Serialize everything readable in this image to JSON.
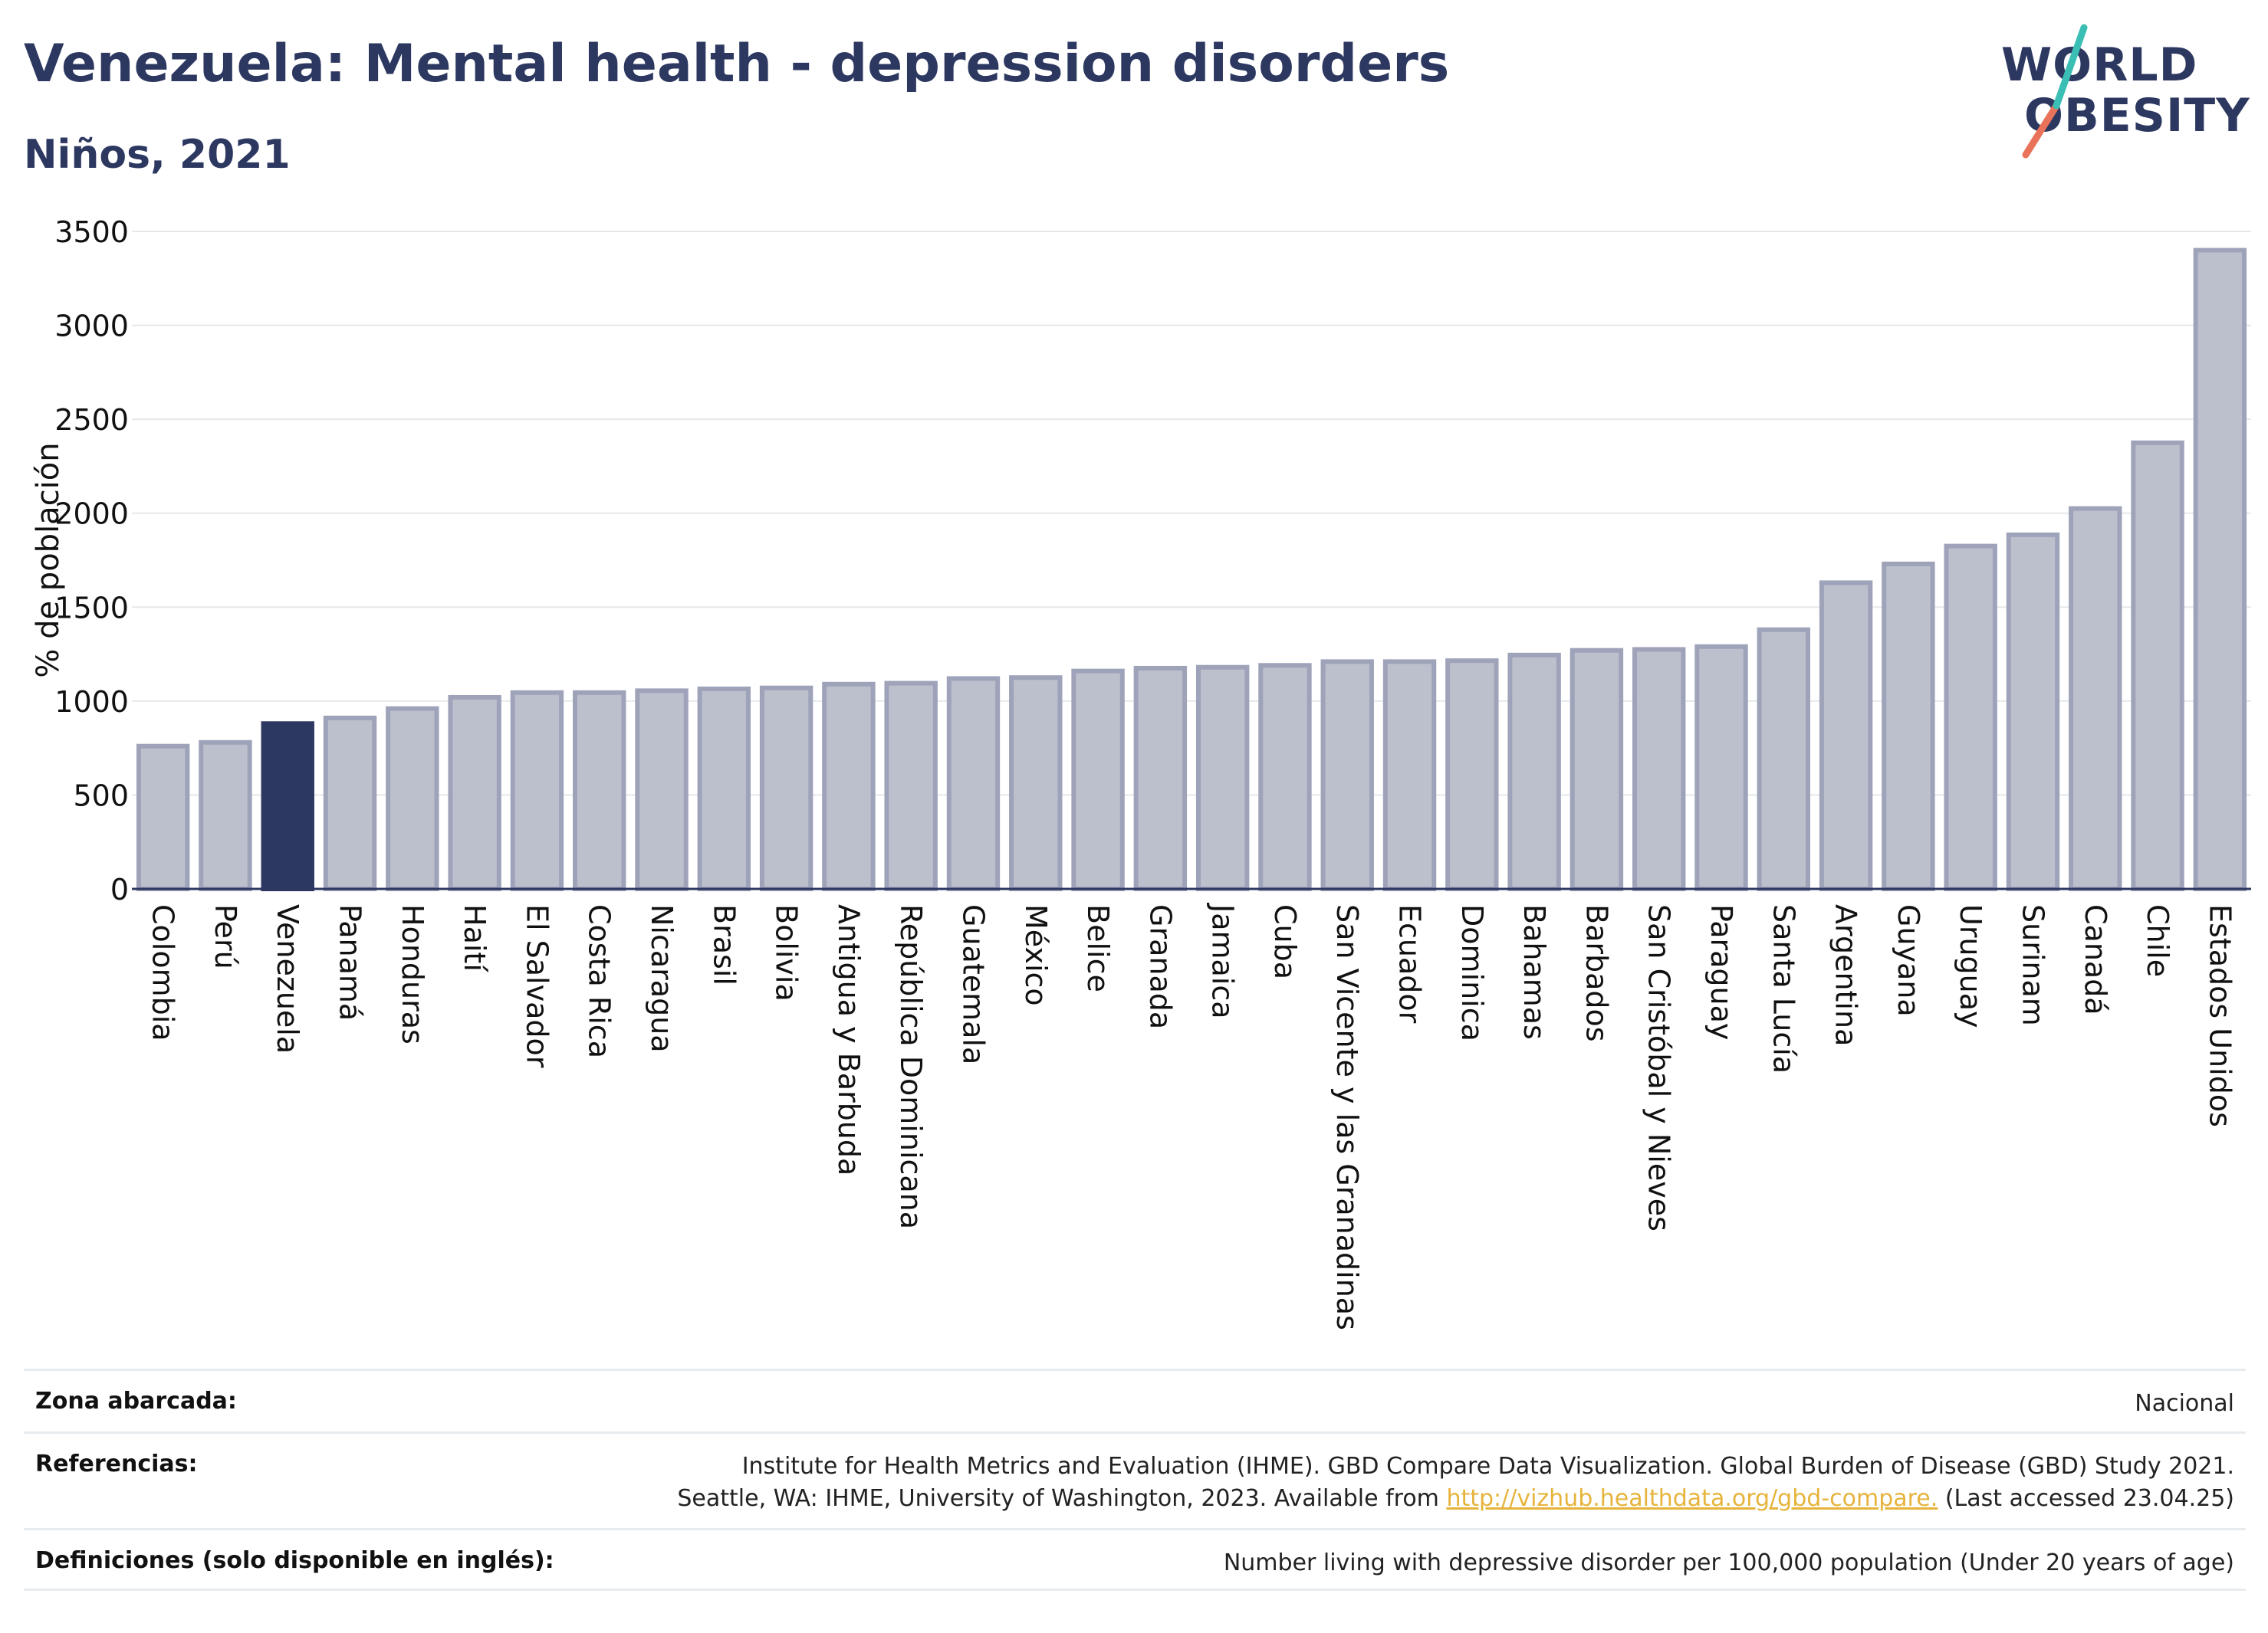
{
  "header": {
    "title": "Venezuela: Mental health - depression disorders",
    "subtitle": "Niños, 2021"
  },
  "logo": {
    "line1": "WORLD",
    "line2": "OBESITY",
    "accent_teal": "#3bbfb5",
    "accent_coral": "#e8735a"
  },
  "colors": {
    "highlight_bar": "#2d3861",
    "other_bar_fill": "#bcc0cd",
    "other_bar_stroke": "#9ea3ba",
    "text": "#2d3861"
  },
  "chart_data": {
    "type": "bar",
    "ylabel": "% de población",
    "ylim": [
      0,
      3500
    ],
    "yticks": [
      0,
      500,
      1000,
      1500,
      2000,
      2500,
      3000,
      3500
    ],
    "grid": true,
    "highlight": "Venezuela",
    "categories": [
      "Colombia",
      "Perú",
      "Venezuela",
      "Panamá",
      "Honduras",
      "Haití",
      "El Salvador",
      "Costa Rica",
      "Nicaragua",
      "Brasil",
      "Bolivia",
      "Antigua y Barbuda",
      "República Dominicana",
      "Guatemala",
      "México",
      "Belice",
      "Granada",
      "Jamaica",
      "Cuba",
      "San Vicente y las Granadinas",
      "Ecuador",
      "Dominica",
      "Bahamas",
      "Barbados",
      "San Cristóbal y Nieves",
      "Paraguay",
      "Santa Lucía",
      "Argentina",
      "Guyana",
      "Uruguay",
      "Surinam",
      "Canadá",
      "Chile",
      "Estados Unidos"
    ],
    "values": [
      760,
      780,
      880,
      910,
      960,
      1020,
      1045,
      1045,
      1055,
      1065,
      1070,
      1090,
      1095,
      1120,
      1125,
      1160,
      1175,
      1180,
      1190,
      1210,
      1210,
      1215,
      1245,
      1270,
      1275,
      1290,
      1380,
      1630,
      1730,
      1825,
      1885,
      2025,
      2375,
      3400
    ]
  },
  "footer": {
    "rows": [
      {
        "label": "Zona abarcada:",
        "value": "Nacional"
      },
      {
        "label": "Referencias:",
        "value_line1": "Institute for Health Metrics and Evaluation (IHME). GBD Compare Data Visualization. Global Burden of Disease (GBD) Study 2021.",
        "value_line2_pre": "Seattle, WA: IHME, University of Washington, 2023. Available from ",
        "link": "http://vizhub.healthdata.org/gbd-compare.",
        "value_line2_post": " (Last accessed 23.04.25)"
      },
      {
        "label": "Definiciones (solo disponible en inglés):",
        "value": "Number living with depressive disorder per 100,000 population (Under 20 years of age)"
      }
    ]
  }
}
